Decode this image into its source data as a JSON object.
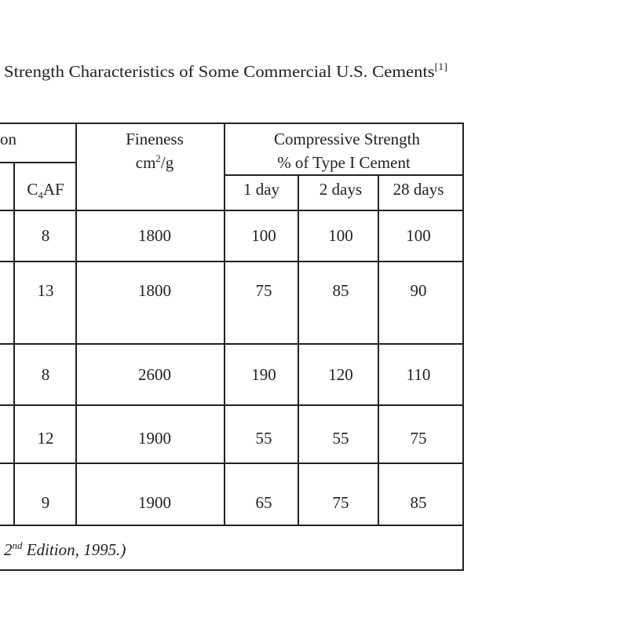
{
  "title": {
    "text": "Strength Characteristics of Some Commercial U.S. Cements",
    "ref": "[1]"
  },
  "table": {
    "header": {
      "composition_fragment": "on",
      "c4af": {
        "base": "C",
        "sub": "4",
        "rest": "AF"
      },
      "fineness": {
        "label": "Fineness",
        "unit_base": "cm",
        "unit_exp": "2",
        "unit_rest": "/g"
      },
      "strength": {
        "title": "Compressive Strength",
        "subtitle": "% of Type I Cement",
        "columns": [
          "1 day",
          "2 days",
          "28 days"
        ]
      }
    },
    "rows": [
      [
        8,
        1800,
        100,
        100,
        100
      ],
      [
        13,
        1800,
        75,
        85,
        90
      ],
      [
        8,
        2600,
        190,
        120,
        110
      ],
      [
        12,
        1900,
        55,
        55,
        75
      ],
      [
        9,
        1900,
        65,
        75,
        85
      ]
    ]
  },
  "footer": {
    "edition": "2",
    "suffix": "nd",
    "text": " Edition, 1995.)"
  }
}
